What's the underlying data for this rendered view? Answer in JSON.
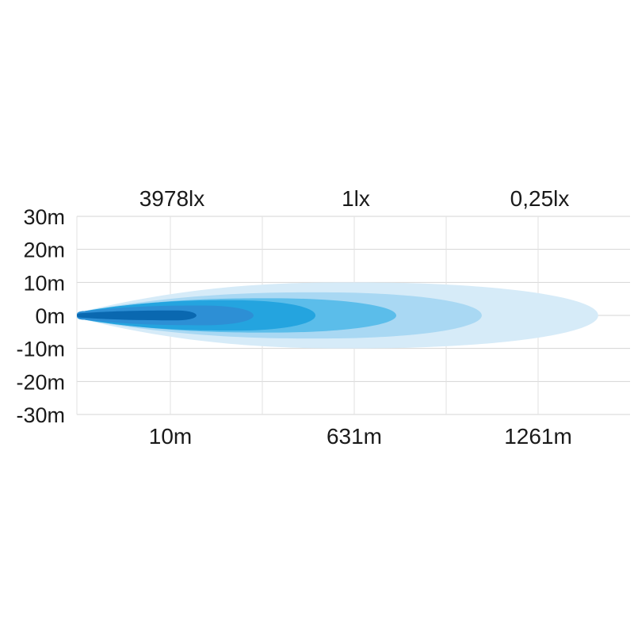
{
  "chart_data": {
    "type": "area",
    "title": "",
    "top_labels": [
      "3978lx",
      "1lx",
      "0,25lx"
    ],
    "x_tick_labels": [
      "10m",
      "631m",
      "1261m"
    ],
    "x_ticks": [
      10,
      631,
      1261
    ],
    "y_tick_labels": [
      "30m",
      "20m",
      "10m",
      "0m",
      "-10m",
      "-20m",
      "-30m"
    ],
    "y_ticks": [
      30,
      20,
      10,
      0,
      -10,
      -20,
      -30
    ],
    "ylim": [
      -30,
      30
    ],
    "grid": true,
    "beam_contours": [
      {
        "reach_m": 1467,
        "half_width_m": 10,
        "widest_at_m": 631,
        "color": "#d6ebf8"
      },
      {
        "reach_m": 1068,
        "half_width_m": 7,
        "widest_at_m": 520,
        "color": "#a9d8f3"
      },
      {
        "reach_m": 775,
        "half_width_m": 5.2,
        "widest_at_m": 350,
        "color": "#5bbdea"
      },
      {
        "reach_m": 500,
        "half_width_m": 4.6,
        "widest_at_m": 230,
        "color": "#24a4df"
      },
      {
        "reach_m": 291,
        "half_width_m": 3,
        "widest_at_m": 120,
        "color": "#2d8fd5"
      },
      {
        "reach_m": 98,
        "half_width_m": 1.5,
        "widest_at_m": 30,
        "color": "#0a68b0"
      }
    ]
  }
}
